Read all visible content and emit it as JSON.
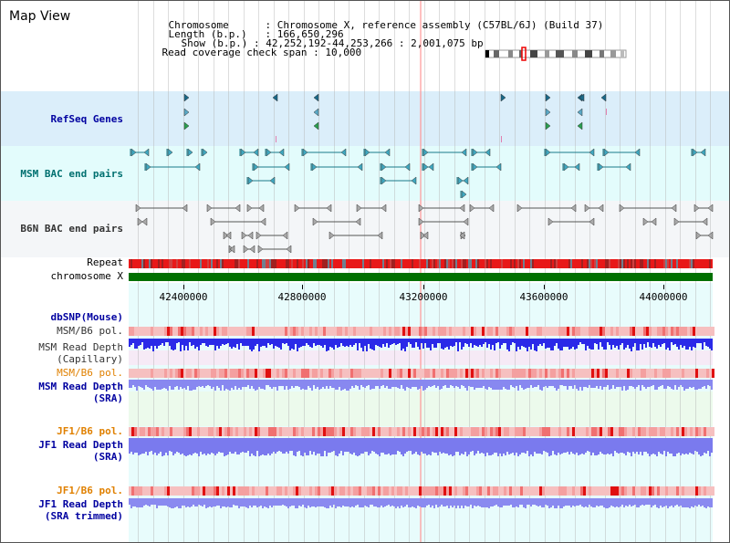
{
  "page": {
    "title": "Map View",
    "info": {
      "chromosome_key": "Chromosome",
      "chromosome_value": "Chromosome X, reference assembly (C57BL/6J) (Build 37)",
      "length_key": "Length (b.p.)",
      "length_value": "166,650,296",
      "show_key": "Show (b.p.)",
      "show_value": "42,252,192-44,253,266 : 2,001,075 bp",
      "coverage_key": "Read coverage check span",
      "coverage_value": "10,000"
    }
  },
  "tracks": {
    "refseq": "RefSeq Genes",
    "msm_bac": "MSM BAC end pairs",
    "b6n_bac": "B6N BAC end pairs",
    "repeat": "Repeat",
    "chromosome": "chromosome X",
    "dbsnp": "dbSNP(Mouse)",
    "msm_b6_pol_1": "MSM/B6 pol.",
    "msm_read_depth_cap_1": "MSM Read Depth",
    "msm_read_depth_cap_2": "(Capillary)",
    "msm_b6_pol_2": "MSM/B6 pol.",
    "msm_read_depth_sra_1": "MSM Read Depth",
    "msm_read_depth_sra_2": "(SRA)",
    "jf1_b6_pol_1": "JF1/B6 pol.",
    "jf1_read_depth_sra_1": "JF1 Read Depth",
    "jf1_read_depth_sra_2": "(SRA)",
    "jf1_b6_pol_2": "JF1/B6 pol.",
    "jf1_read_depth_trim_1": "JF1 Read Depth",
    "jf1_read_depth_trim_2": "(SRA trimmed)"
  },
  "axis": {
    "ticks": [
      "42400000",
      "42800000",
      "43200000",
      "43600000",
      "44000000"
    ]
  },
  "colors": {
    "refseq_bg": "#dbeefa",
    "msm_bg": "#e3fcfc",
    "b6n_bg": "#f4f6f8",
    "chromosome_bar": "#007000",
    "lower_bg": "#e8fcfc",
    "depth_blue": "#2a2ae8",
    "depth_light": "#8888f0",
    "pol_base": "#f4b4b4",
    "pol_hot": "#e82020"
  }
}
